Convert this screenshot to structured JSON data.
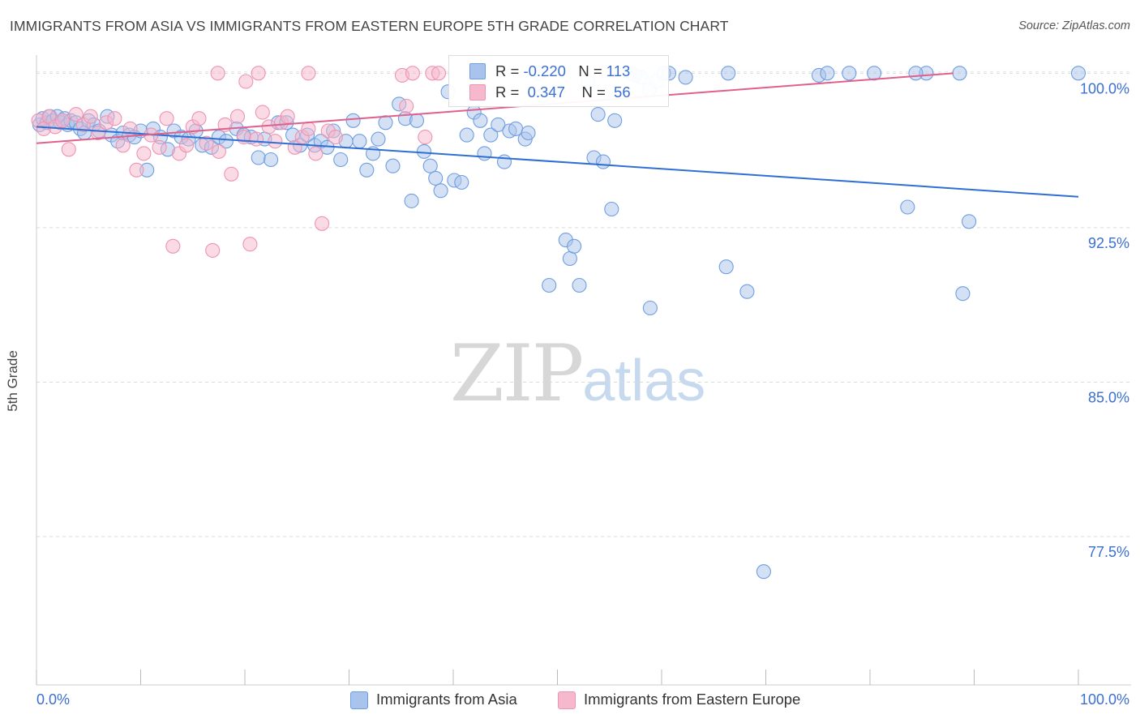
{
  "title": "IMMIGRANTS FROM ASIA VS IMMIGRANTS FROM EASTERN EUROPE 5TH GRADE CORRELATION CHART",
  "source": "Source: ZipAtlas.com",
  "watermark": {
    "zip": "ZIP",
    "atlas": "atlas"
  },
  "legend": {
    "r_label": "R =",
    "n_label": "N =",
    "asia": {
      "r": "-0.220",
      "n": "113"
    },
    "europe": {
      "r": "0.347",
      "n": "56"
    }
  },
  "colors": {
    "asia_fill": "#a9c4ec",
    "asia_stroke": "#6f9ee0",
    "asia_line": "#2f6fd3",
    "europe_fill": "#f6b8cc",
    "europe_stroke": "#ee94b1",
    "europe_line": "#e0608c",
    "tick_label": "#3b6fd1",
    "grid": "#d9d9d9"
  },
  "chart_data": {
    "type": "scatter",
    "title": "IMMIGRANTS FROM ASIA VS IMMIGRANTS FROM EASTERN EUROPE 5TH GRADE CORRELATION CHART",
    "xlabel": "",
    "ylabel": "5th Grade",
    "xlim": [
      0,
      100
    ],
    "ylim": [
      70.3,
      100.8
    ],
    "y_ticks": [
      77.5,
      85.0,
      92.5,
      100.0
    ],
    "y_tick_labels": [
      "77.5%",
      "85.0%",
      "92.5%",
      "100.0%"
    ],
    "x_tick_labels": [
      "0.0%",
      "100.0%"
    ],
    "grid": "horizontal dashed",
    "legend_position": "top-center",
    "series": [
      {
        "name": "Immigrants from Asia",
        "trend": [
          [
            0,
            97.4
          ],
          [
            100,
            94.0
          ]
        ],
        "points": [
          [
            0.3,
            97.5
          ],
          [
            0.6,
            97.8
          ],
          [
            1.0,
            97.6
          ],
          [
            1.3,
            97.9
          ],
          [
            1.6,
            97.7
          ],
          [
            2.0,
            97.9
          ],
          [
            2.3,
            97.6
          ],
          [
            2.7,
            97.8
          ],
          [
            3.0,
            97.5
          ],
          [
            3.3,
            97.7
          ],
          [
            3.8,
            97.6
          ],
          [
            4.2,
            97.3
          ],
          [
            4.6,
            97.1
          ],
          [
            5.0,
            97.7
          ],
          [
            5.5,
            97.5
          ],
          [
            6.0,
            97.2
          ],
          [
            6.8,
            97.9
          ],
          [
            7.2,
            97.0
          ],
          [
            7.8,
            96.7
          ],
          [
            8.3,
            97.1
          ],
          [
            8.9,
            97.0
          ],
          [
            9.4,
            96.9
          ],
          [
            10.0,
            97.2
          ],
          [
            10.6,
            95.3
          ],
          [
            11.2,
            97.3
          ],
          [
            11.9,
            96.9
          ],
          [
            12.6,
            96.3
          ],
          [
            13.2,
            97.2
          ],
          [
            13.9,
            96.9
          ],
          [
            14.6,
            96.8
          ],
          [
            15.3,
            97.2
          ],
          [
            15.9,
            96.5
          ],
          [
            16.8,
            96.4
          ],
          [
            17.5,
            96.9
          ],
          [
            18.2,
            96.7
          ],
          [
            19.2,
            97.3
          ],
          [
            19.9,
            97.0
          ],
          [
            20.6,
            96.9
          ],
          [
            21.3,
            95.9
          ],
          [
            21.9,
            96.8
          ],
          [
            22.5,
            95.8
          ],
          [
            23.2,
            97.6
          ],
          [
            24.0,
            97.6
          ],
          [
            24.6,
            97.0
          ],
          [
            25.3,
            96.5
          ],
          [
            26.0,
            97.0
          ],
          [
            26.7,
            96.5
          ],
          [
            27.3,
            96.7
          ],
          [
            27.9,
            96.4
          ],
          [
            28.5,
            97.2
          ],
          [
            29.2,
            95.8
          ],
          [
            29.7,
            96.7
          ],
          [
            30.4,
            97.7
          ],
          [
            31.0,
            96.7
          ],
          [
            31.7,
            95.3
          ],
          [
            32.3,
            96.1
          ],
          [
            32.8,
            96.8
          ],
          [
            33.5,
            97.6
          ],
          [
            34.2,
            95.5
          ],
          [
            34.8,
            98.5
          ],
          [
            35.4,
            97.8
          ],
          [
            36.0,
            93.8
          ],
          [
            36.5,
            97.7
          ],
          [
            37.2,
            96.2
          ],
          [
            37.8,
            95.5
          ],
          [
            38.3,
            94.9
          ],
          [
            38.8,
            94.3
          ],
          [
            39.5,
            99.1
          ],
          [
            40.1,
            94.8
          ],
          [
            40.8,
            94.7
          ],
          [
            41.3,
            97.0
          ],
          [
            42.0,
            98.1
          ],
          [
            42.6,
            97.7
          ],
          [
            43.0,
            96.1
          ],
          [
            43.6,
            97.0
          ],
          [
            44.3,
            97.5
          ],
          [
            44.9,
            95.7
          ],
          [
            45.4,
            97.2
          ],
          [
            46.0,
            97.3
          ],
          [
            46.9,
            96.8
          ],
          [
            47.2,
            97.1
          ],
          [
            48.2,
            100.0
          ],
          [
            48.6,
            98.9
          ],
          [
            49.2,
            89.7
          ],
          [
            50.1,
            99.1
          ],
          [
            50.8,
            91.9
          ],
          [
            51.2,
            91.0
          ],
          [
            51.6,
            91.6
          ],
          [
            52.1,
            89.7
          ],
          [
            52.9,
            99.6
          ],
          [
            53.5,
            95.9
          ],
          [
            53.9,
            98.0
          ],
          [
            54.4,
            95.7
          ],
          [
            55.2,
            93.4
          ],
          [
            55.5,
            97.7
          ],
          [
            57.0,
            100.0
          ],
          [
            57.4,
            99.9
          ],
          [
            58.0,
            99.8
          ],
          [
            58.8,
            99.2
          ],
          [
            58.9,
            88.6
          ],
          [
            59.5,
            99.6
          ],
          [
            60.2,
            100.0
          ],
          [
            60.7,
            100.0
          ],
          [
            62.3,
            99.8
          ],
          [
            66.2,
            90.6
          ],
          [
            68.2,
            89.4
          ],
          [
            75.1,
            99.9
          ],
          [
            75.9,
            100.0
          ],
          [
            78.0,
            100.0
          ],
          [
            80.4,
            100.0
          ],
          [
            83.6,
            93.5
          ],
          [
            85.4,
            100.0
          ],
          [
            88.6,
            100.0
          ],
          [
            89.5,
            92.8
          ],
          [
            100.0,
            100.0
          ],
          [
            66.4,
            100.0
          ],
          [
            69.8,
            75.8
          ],
          [
            88.9,
            89.3
          ],
          [
            84.4,
            100.0
          ]
        ]
      },
      {
        "name": "Immigrants from Eastern Europe",
        "trend": [
          [
            0,
            96.6
          ],
          [
            88,
            100.0
          ]
        ],
        "points": [
          [
            0.2,
            97.7
          ],
          [
            0.7,
            97.3
          ],
          [
            1.2,
            97.9
          ],
          [
            1.8,
            97.4
          ],
          [
            2.5,
            97.7
          ],
          [
            3.1,
            96.3
          ],
          [
            3.8,
            98.0
          ],
          [
            4.5,
            97.5
          ],
          [
            5.2,
            97.9
          ],
          [
            5.9,
            97.1
          ],
          [
            6.7,
            97.6
          ],
          [
            7.5,
            97.8
          ],
          [
            8.3,
            96.5
          ],
          [
            9.0,
            97.3
          ],
          [
            9.6,
            95.3
          ],
          [
            10.3,
            96.1
          ],
          [
            11.0,
            97.0
          ],
          [
            11.8,
            96.4
          ],
          [
            12.5,
            97.8
          ],
          [
            13.1,
            91.6
          ],
          [
            13.7,
            96.1
          ],
          [
            14.4,
            96.5
          ],
          [
            15.0,
            97.4
          ],
          [
            15.6,
            97.8
          ],
          [
            16.3,
            96.6
          ],
          [
            16.9,
            91.4
          ],
          [
            17.5,
            96.2
          ],
          [
            18.1,
            97.5
          ],
          [
            18.7,
            95.1
          ],
          [
            19.3,
            97.9
          ],
          [
            19.9,
            96.9
          ],
          [
            20.5,
            91.7
          ],
          [
            21.1,
            96.8
          ],
          [
            21.7,
            98.1
          ],
          [
            22.3,
            97.4
          ],
          [
            22.9,
            96.7
          ],
          [
            23.5,
            97.6
          ],
          [
            24.1,
            97.9
          ],
          [
            24.8,
            96.4
          ],
          [
            25.5,
            96.9
          ],
          [
            26.1,
            97.3
          ],
          [
            26.8,
            96.1
          ],
          [
            27.4,
            92.7
          ],
          [
            28.0,
            97.2
          ],
          [
            28.7,
            96.9
          ],
          [
            35.5,
            98.4
          ],
          [
            35.1,
            99.9
          ],
          [
            36.1,
            100.0
          ],
          [
            37.3,
            96.9
          ],
          [
            38.0,
            100.0
          ],
          [
            38.6,
            100.0
          ],
          [
            42.0,
            100.0
          ],
          [
            17.4,
            100.0
          ],
          [
            20.1,
            99.6
          ],
          [
            21.3,
            100.0
          ],
          [
            26.1,
            100.0
          ]
        ]
      }
    ]
  }
}
